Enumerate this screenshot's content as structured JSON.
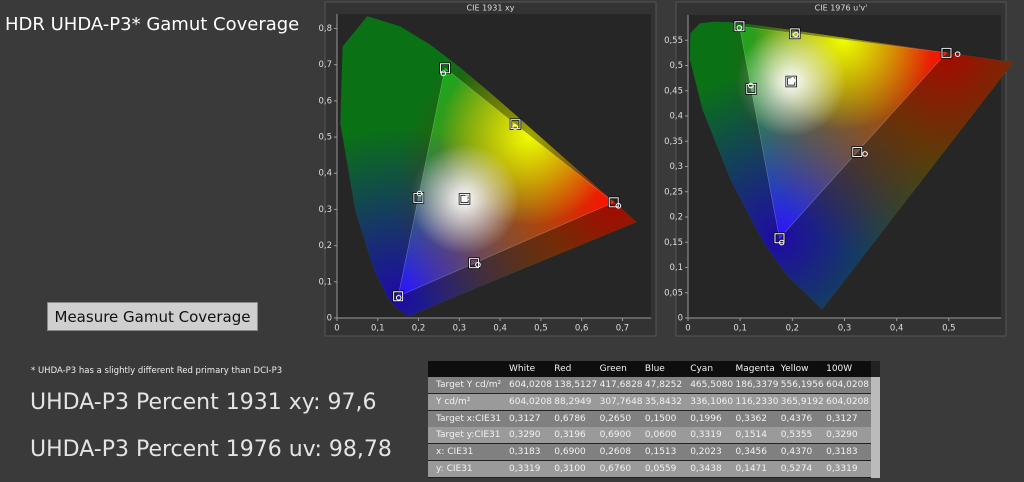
{
  "header": {
    "title": "HDR UHDA-P3* Gamut Coverage"
  },
  "button": {
    "label": "Measure Gamut Coverage"
  },
  "footnote": "* UHDA-P3 has a slightly different Red primary than DCI-P3",
  "results": [
    "UHDA-P3 Percent 1931 xy: 97,6",
    "UHDA-P3 Percent 1976 uv: 98,78"
  ],
  "chart_data": [
    {
      "type": "scatter",
      "title": "CIE 1931 xy",
      "xlim": [
        0,
        0.77
      ],
      "ylim": [
        0,
        0.84
      ],
      "xticks": [
        0,
        {
          "value": 0.1,
          "label": "0,1"
        },
        {
          "value": 0.2,
          "label": "0,2"
        },
        {
          "value": 0.3,
          "label": "0,3"
        },
        {
          "value": 0.4,
          "label": "0,4"
        },
        {
          "value": 0.5,
          "label": "0,5"
        },
        {
          "value": 0.6,
          "label": "0,6"
        },
        {
          "value": 0.7,
          "label": "0,7"
        }
      ],
      "yticks": [
        0,
        {
          "value": 0.1,
          "label": "0,1"
        },
        {
          "value": 0.2,
          "label": "0,2"
        },
        {
          "value": 0.3,
          "label": "0,3"
        },
        {
          "value": 0.4,
          "label": "0,4"
        },
        {
          "value": 0.5,
          "label": "0,5"
        },
        {
          "value": 0.6,
          "label": "0,6"
        },
        {
          "value": 0.7,
          "label": "0,7"
        },
        {
          "value": 0.8,
          "label": "0,8"
        }
      ],
      "grid": false,
      "series": [
        {
          "marker": "square",
          "color": "#ffffff",
          "x": [
            0.3127,
            0.6786,
            0.265,
            0.15,
            0.1996,
            0.3362,
            0.4376
          ],
          "values": [
            0.329,
            0.3196,
            0.69,
            0.06,
            0.3319,
            0.1514,
            0.5355
          ]
        },
        {
          "marker": "circle",
          "color": "#ffffff",
          "x": [
            0.3183,
            0.69,
            0.2608,
            0.1513,
            0.2023,
            0.3456,
            0.437
          ],
          "values": [
            0.3319,
            0.31,
            0.676,
            0.0559,
            0.3438,
            0.1471,
            0.5274
          ]
        }
      ]
    },
    {
      "type": "scatter",
      "title": "CIE 1976 u'v'",
      "xlim": [
        0,
        0.6
      ],
      "ylim": [
        0,
        0.6
      ],
      "xticks": [
        0,
        {
          "value": 0.1,
          "label": "0,1"
        },
        {
          "value": 0.2,
          "label": "0,2"
        },
        {
          "value": 0.3,
          "label": "0,3"
        },
        {
          "value": 0.4,
          "label": "0,4"
        },
        {
          "value": 0.5,
          "label": "0,5"
        }
      ],
      "yticks": [
        0,
        {
          "value": 0.05,
          "label": "0,05"
        },
        {
          "value": 0.1,
          "label": "0,1"
        },
        {
          "value": 0.15,
          "label": "0,15"
        },
        {
          "value": 0.2,
          "label": "0,2"
        },
        {
          "value": 0.25,
          "label": "0,25"
        },
        {
          "value": 0.3,
          "label": "0,3"
        },
        {
          "value": 0.35,
          "label": "0,35"
        },
        {
          "value": 0.4,
          "label": "0,4"
        },
        {
          "value": 0.45,
          "label": "0,45"
        },
        {
          "value": 0.5,
          "label": "0,5"
        },
        {
          "value": 0.55,
          "label": "0,55"
        }
      ],
      "grid": false,
      "series": [
        {
          "marker": "square",
          "color": "#ffffff",
          "x": [
            0.1978,
            0.4955,
            0.0986,
            0.1754,
            0.1213,
            0.3245,
            0.2047
          ],
          "values": [
            0.4683,
            0.5251,
            0.5777,
            0.1579,
            0.4537,
            0.3288,
            0.5636
          ]
        },
        {
          "marker": "circle",
          "color": "#ffffff",
          "x": [
            0.2006,
            0.5169,
            0.0985,
            0.1797,
            0.1204,
            0.3393,
            0.2067
          ],
          "values": [
            0.4707,
            0.5225,
            0.5745,
            0.1494,
            0.4604,
            0.325,
            0.5614
          ]
        }
      ]
    }
  ],
  "table": {
    "columns": [
      "White",
      "Red",
      "Green",
      "Blue",
      "Cyan",
      "Magenta",
      "Yellow",
      "100W"
    ],
    "rows": [
      {
        "label": "Target Y cd/m²",
        "cells": [
          "604,0208",
          "138,5127",
          "417,6828",
          "47,8252",
          "465,5080",
          "186,3379",
          "556,1956",
          "604,0208"
        ]
      },
      {
        "label": "Y cd/m²",
        "cells": [
          "604,0208",
          "88,2949",
          "307,7648",
          "35,8432",
          "336,1060",
          "116,2330",
          "365,9192",
          "604,0208"
        ]
      },
      {
        "label": "Target x:CIE31",
        "cells": [
          "0,3127",
          "0,6786",
          "0,2650",
          "0,1500",
          "0,1996",
          "0,3362",
          "0,4376",
          "0,3127"
        ]
      },
      {
        "label": "Target y:CIE31",
        "cells": [
          "0,3290",
          "0,3196",
          "0,6900",
          "0,0600",
          "0,3319",
          "0,1514",
          "0,5355",
          "0,3290"
        ]
      },
      {
        "label": "x: CIE31",
        "cells": [
          "0,3183",
          "0,6900",
          "0,2608",
          "0,1513",
          "0,2023",
          "0,3456",
          "0,4370",
          "0,3183"
        ]
      },
      {
        "label": "y: CIE31",
        "cells": [
          "0,3319",
          "0,3100",
          "0,6760",
          "0,0559",
          "0,3438",
          "0,1471",
          "0,5274",
          "0,3319"
        ]
      }
    ]
  }
}
